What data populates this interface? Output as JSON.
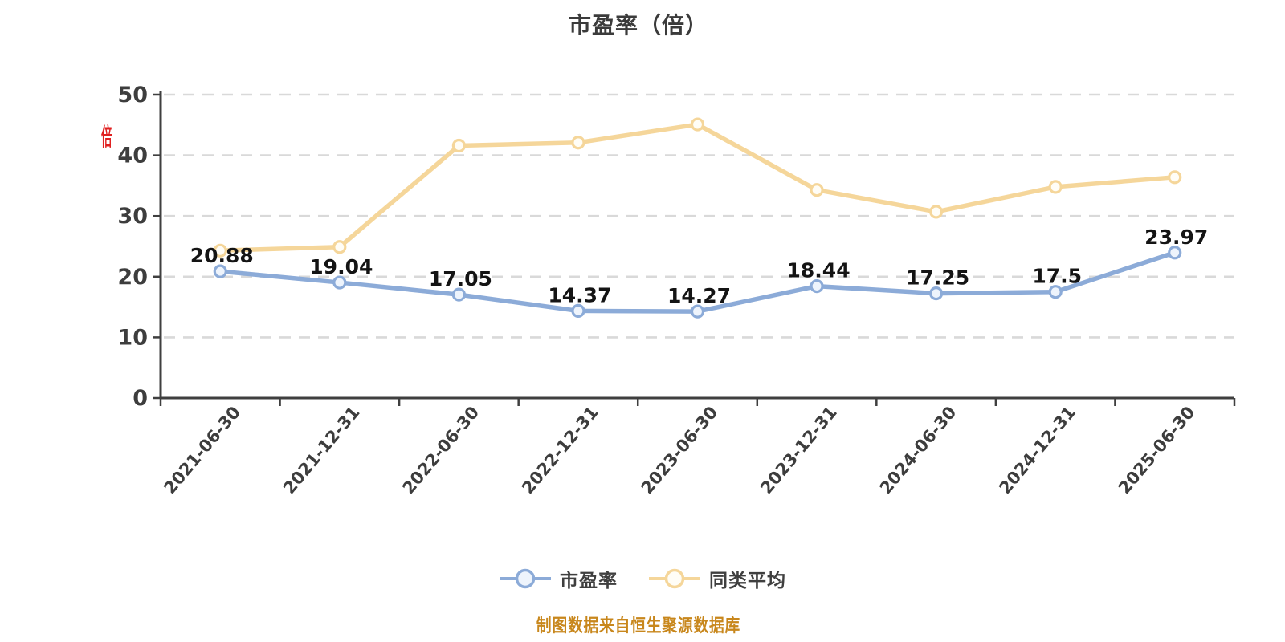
{
  "title": "市盈率（倍）",
  "y_axis_unit_label": "倍",
  "footnote": "制图数据来自恒生聚源数据库",
  "legend": {
    "items": [
      {
        "label": "市盈率",
        "color": "#8cabd8"
      },
      {
        "label": "同类平均",
        "color": "#f5d69a"
      }
    ]
  },
  "colors": {
    "background": "#ffffff",
    "title_text": "#3b3b3b",
    "axis": "#3f3f3f",
    "gridline": "#d9d9d9",
    "tick_label": "#3d3d3d",
    "value_label": "#141414",
    "series_pe": "#8cabd8",
    "series_avg": "#f5d69a",
    "unit_label_red": "#e01f1f",
    "footnote_orange": "#c8871c"
  },
  "chart_data": {
    "type": "line",
    "title": "市盈率（倍）",
    "categories": [
      "2021-06-30",
      "2021-12-31",
      "2022-06-30",
      "2022-12-31",
      "2023-06-30",
      "2023-12-31",
      "2024-06-30",
      "2024-12-31",
      "2025-06-30"
    ],
    "series": [
      {
        "name": "市盈率",
        "color": "#8cabd8",
        "marker_fill": "#eef4fc",
        "values": [
          20.88,
          19.04,
          17.05,
          14.37,
          14.27,
          18.44,
          17.25,
          17.5,
          23.97
        ],
        "display_values": [
          "20.88",
          "19.04",
          "17.05",
          "14.37",
          "14.27",
          "18.44",
          "17.25",
          "17.5",
          "23.97"
        ],
        "show_labels": true
      },
      {
        "name": "同类平均",
        "color": "#f5d69a",
        "marker_fill": "#fffdf6",
        "values": [
          24.3,
          24.9,
          41.6,
          42.1,
          45.1,
          34.3,
          30.7,
          34.8,
          36.4
        ],
        "display_values": [
          "24.3",
          "24.9",
          "41.6",
          "42.1",
          "45.1",
          "34.3",
          "30.7",
          "34.8",
          "36.4"
        ],
        "show_labels": false
      }
    ],
    "xlabel": "",
    "ylabel": "倍",
    "ylim": [
      0,
      50
    ],
    "y_ticks": [
      0,
      10,
      20,
      30,
      40,
      50
    ],
    "grid": "horizontal dashed",
    "legend_position": "bottom"
  }
}
